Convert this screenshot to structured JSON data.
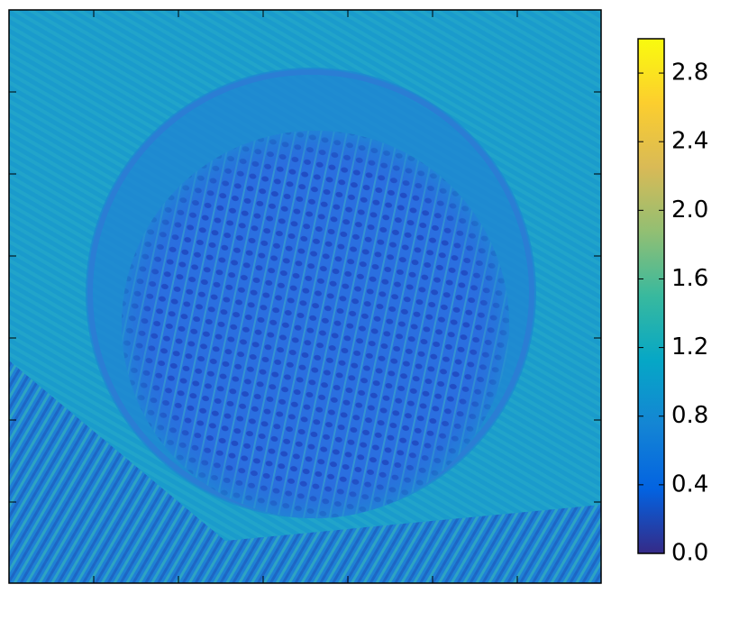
{
  "chart_data": {
    "type": "heatmap",
    "colormap": [
      "#352a87",
      "#0363e1",
      "#1485d4",
      "#06a7c6",
      "#38b99e",
      "#92bf73",
      "#d9ba56",
      "#fcce2e",
      "#f9fb0e"
    ],
    "clim": [
      0,
      3.0
    ],
    "cticks": [
      {
        "value": 0,
        "label": "0.0"
      },
      0.4,
      0.8,
      1.2,
      1.6,
      {
        "value": 2,
        "label": "2.0"
      },
      2.4,
      2.8
    ]
  }
}
